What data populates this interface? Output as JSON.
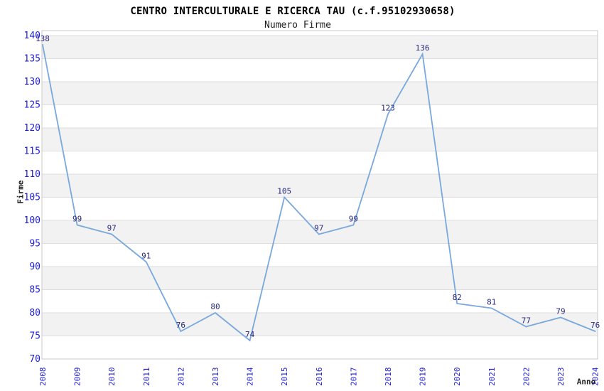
{
  "chart_data": {
    "type": "line",
    "title": "CENTRO INTERCULTURALE E RICERCA TAU (c.f.95102930658)",
    "subtitle": "Numero Firme",
    "xlabel": "Anno",
    "ylabel": "Firme",
    "categories": [
      "2008",
      "2009",
      "2010",
      "2011",
      "2012",
      "2013",
      "2014",
      "2015",
      "2016",
      "2017",
      "2018",
      "2019",
      "2020",
      "2021",
      "2022",
      "2023",
      "2024"
    ],
    "series": [
      {
        "name": "Numero Firme",
        "values": [
          138,
          99,
          97,
          91,
          76,
          80,
          74,
          105,
          97,
          99,
          123,
          136,
          82,
          81,
          77,
          79,
          76
        ]
      }
    ],
    "ylim": [
      70,
      140
    ],
    "ytick_step": 5,
    "yticks": [
      70,
      75,
      80,
      85,
      90,
      95,
      100,
      105,
      110,
      115,
      120,
      125,
      130,
      135,
      140
    ],
    "grid": "horizontal-bands-alternating",
    "legend": "none",
    "x_label_rotation": 90,
    "data_labels_shown": true,
    "colors": {
      "line": "#79a8dc",
      "data_label": "#28287e",
      "tick_label": "#1e1ed2",
      "band": "#f2f2f2",
      "grid_line": "#dedede",
      "border": "#c9c9c9",
      "title": "#000000",
      "subtitle": "#1c1c1c",
      "axis_title": "#1c1c1c",
      "background": "#ffffff"
    }
  }
}
